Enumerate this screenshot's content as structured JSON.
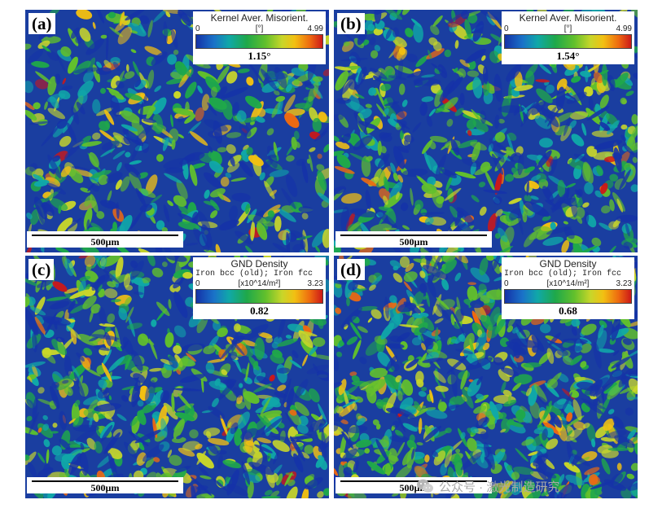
{
  "panels": [
    {
      "label": "(a)",
      "scale_bar": "500µm",
      "legend": {
        "title": "Kernel Aver. Misorient.",
        "phase": "",
        "min": "0",
        "unit": "[°]",
        "max": "4.99",
        "average": "1.15°"
      },
      "texture": {
        "base": "#1a3ea0",
        "density": 0.5
      }
    },
    {
      "label": "(b)",
      "scale_bar": "500µm",
      "legend": {
        "title": "Kernel Aver. Misorient.",
        "phase": "",
        "min": "0",
        "unit": "[°]",
        "max": "4.99",
        "average": "1.54°"
      },
      "texture": {
        "base": "#1a3ea0",
        "density": 0.62
      }
    },
    {
      "label": "(c)",
      "scale_bar": "500µm",
      "legend": {
        "title": "GND Density",
        "phase": "Iron bcc (old); Iron fcc",
        "min": "0",
        "unit": "[x10^14/m²]",
        "max": "3.23",
        "average": "0.82"
      },
      "texture": {
        "base": "#1a3ea0",
        "density": 0.68
      }
    },
    {
      "label": "(d)",
      "scale_bar": "500µm",
      "legend": {
        "title": "GND Density",
        "phase": "Iron bcc (old); Iron fcc",
        "min": "0",
        "unit": "[x10^14/m²]",
        "max": "3.23",
        "average": "0.68"
      },
      "texture": {
        "base": "#1a3ea0",
        "density": 0.78
      }
    }
  ],
  "watermark": {
    "text": "公众号 · 激光制造研究",
    "icon": "wechat-icon"
  },
  "colormap": [
    "#1532a8",
    "#1a72c8",
    "#10a8a8",
    "#1fa84a",
    "#62c02c",
    "#c8d62a",
    "#f2c012",
    "#ee6a10",
    "#cc1818"
  ]
}
